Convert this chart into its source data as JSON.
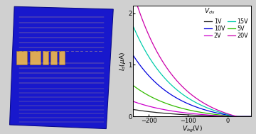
{
  "xlim": [
    -240,
    60
  ],
  "ylim": [
    0,
    2.15
  ],
  "xticks": [
    -200,
    -100,
    0
  ],
  "yticks": [
    0,
    1,
    2
  ],
  "curve_params": [
    {
      "label": "1V",
      "color": "#222222",
      "scale": 0.12,
      "tau": 130
    },
    {
      "label": "2V",
      "color": "#cc00cc",
      "scale": 0.255,
      "tau": 120
    },
    {
      "label": "5V",
      "color": "#33bb00",
      "scale": 0.52,
      "tau": 115
    },
    {
      "label": "10V",
      "color": "#0000dd",
      "scale": 1.02,
      "tau": 110
    },
    {
      "label": "15V",
      "color": "#00ccaa",
      "scale": 1.5,
      "tau": 108
    },
    {
      "label": "20V",
      "color": "#cc00aa",
      "scale": 2.05,
      "tau": 105
    }
  ],
  "Vth": 25,
  "photo_bg": "#c0c0c0",
  "chip_color": "#1818cc",
  "chip_edge": "#0a0a88",
  "pad_color": "#ddaa55",
  "pad_edge": "#aa7722",
  "line_color": "#ddbb77"
}
